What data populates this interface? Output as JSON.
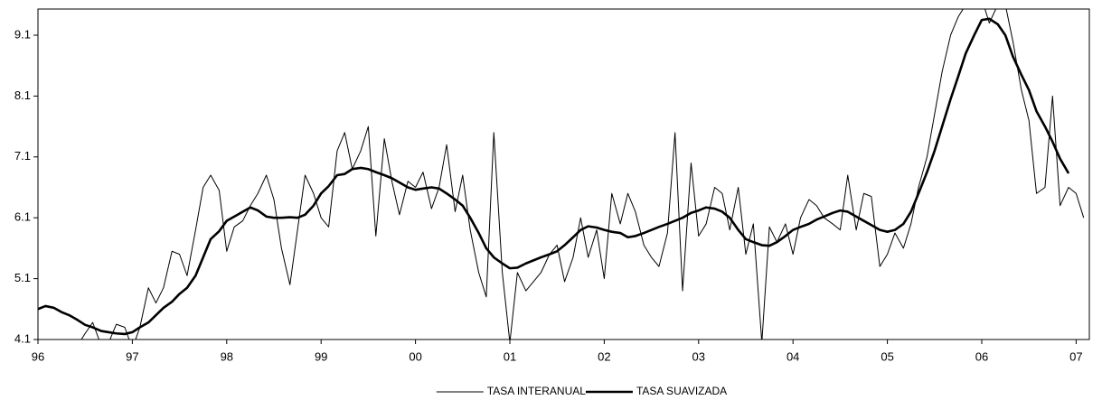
{
  "chart_data": {
    "type": "line",
    "x": [
      1996.0,
      1996.08,
      1996.17,
      1996.25,
      1996.33,
      1996.42,
      1996.5,
      1996.58,
      1996.67,
      1996.75,
      1996.83,
      1996.92,
      1997.0,
      1997.08,
      1997.17,
      1997.25,
      1997.33,
      1997.42,
      1997.5,
      1997.58,
      1997.67,
      1997.75,
      1997.83,
      1997.92,
      1998.0,
      1998.08,
      1998.17,
      1998.25,
      1998.33,
      1998.42,
      1998.5,
      1998.58,
      1998.67,
      1998.75,
      1998.83,
      1998.92,
      1999.0,
      1999.08,
      1999.17,
      1999.25,
      1999.33,
      1999.42,
      1999.5,
      1999.58,
      1999.67,
      1999.75,
      1999.83,
      1999.92,
      2000.0,
      2000.08,
      2000.17,
      2000.25,
      2000.33,
      2000.42,
      2000.5,
      2000.58,
      2000.67,
      2000.75,
      2000.83,
      2000.92,
      2001.0,
      2001.08,
      2001.17,
      2001.25,
      2001.33,
      2001.42,
      2001.5,
      2001.58,
      2001.67,
      2001.75,
      2001.83,
      2001.92,
      2002.0,
      2002.08,
      2002.17,
      2002.25,
      2002.33,
      2002.42,
      2002.5,
      2002.58,
      2002.67,
      2002.75,
      2002.83,
      2002.92,
      2003.0,
      2003.08,
      2003.17,
      2003.25,
      2003.33,
      2003.42,
      2003.5,
      2003.58,
      2003.67,
      2003.75,
      2003.83,
      2003.92,
      2004.0,
      2004.08,
      2004.17,
      2004.25,
      2004.33,
      2004.42,
      2004.5,
      2004.58,
      2004.67,
      2004.75,
      2004.83,
      2004.92,
      2005.0,
      2005.08,
      2005.17,
      2005.25,
      2005.33,
      2005.42,
      2005.5,
      2005.58,
      2005.67,
      2005.75,
      2005.83,
      2005.92,
      2006.0,
      2006.08,
      2006.17,
      2006.25,
      2006.33,
      2006.42,
      2006.5,
      2006.58,
      2006.67,
      2006.75,
      2006.83,
      2006.92,
      2007.0,
      2007.08
    ],
    "series": [
      {
        "name": "TASA INTERANUAL",
        "color": "#000000",
        "width": 1,
        "values": [
          4.0,
          4.0,
          4.0,
          4.0,
          4.0,
          4.0,
          4.2,
          4.38,
          4.0,
          4.05,
          4.35,
          4.3,
          3.95,
          4.3,
          4.95,
          4.7,
          4.95,
          5.55,
          5.5,
          5.15,
          5.9,
          6.6,
          6.8,
          6.55,
          5.55,
          5.95,
          6.05,
          6.3,
          6.5,
          6.8,
          6.4,
          5.6,
          5.0,
          5.9,
          6.8,
          6.5,
          6.1,
          5.95,
          7.2,
          7.5,
          6.9,
          7.2,
          7.6,
          5.8,
          7.4,
          6.7,
          6.15,
          6.7,
          6.6,
          6.85,
          6.25,
          6.6,
          7.3,
          6.2,
          6.8,
          5.9,
          5.2,
          4.8,
          7.5,
          5.2,
          4.05,
          5.2,
          4.9,
          5.05,
          5.2,
          5.5,
          5.65,
          5.05,
          5.45,
          6.1,
          5.45,
          5.9,
          5.1,
          6.5,
          6.0,
          6.5,
          6.2,
          5.65,
          5.45,
          5.3,
          5.85,
          7.5,
          4.9,
          7.0,
          5.8,
          6.0,
          6.6,
          6.5,
          5.9,
          6.6,
          5.5,
          6.0,
          4.05,
          5.95,
          5.7,
          6.0,
          5.5,
          6.1,
          6.4,
          6.3,
          6.1,
          6.0,
          5.9,
          6.8,
          5.9,
          6.5,
          6.45,
          5.3,
          5.5,
          5.85,
          5.6,
          6.0,
          6.6,
          7.1,
          7.8,
          8.5,
          9.1,
          9.4,
          9.6,
          9.75,
          9.7,
          9.3,
          9.6,
          9.6,
          9.0,
          8.2,
          7.7,
          6.5,
          6.6,
          8.1,
          6.3,
          6.6,
          6.5,
          6.1
        ]
      },
      {
        "name": "TASA SUAVIZADA",
        "color": "#000000",
        "width": 2.6,
        "values": [
          4.6,
          4.65,
          4.62,
          4.55,
          4.5,
          4.42,
          4.34,
          4.3,
          4.24,
          4.22,
          4.2,
          4.19,
          4.22,
          4.3,
          4.38,
          4.5,
          4.62,
          4.72,
          4.85,
          4.95,
          5.15,
          5.45,
          5.75,
          5.88,
          6.05,
          6.12,
          6.2,
          6.27,
          6.22,
          6.12,
          6.1,
          6.1,
          6.11,
          6.1,
          6.15,
          6.3,
          6.5,
          6.62,
          6.8,
          6.82,
          6.9,
          6.92,
          6.9,
          6.85,
          6.8,
          6.75,
          6.68,
          6.6,
          6.56,
          6.58,
          6.6,
          6.58,
          6.5,
          6.4,
          6.3,
          6.1,
          5.85,
          5.6,
          5.45,
          5.35,
          5.27,
          5.28,
          5.35,
          5.4,
          5.45,
          5.5,
          5.55,
          5.65,
          5.78,
          5.9,
          5.96,
          5.94,
          5.9,
          5.87,
          5.85,
          5.78,
          5.8,
          5.85,
          5.9,
          5.95,
          6.0,
          6.05,
          6.1,
          6.18,
          6.22,
          6.27,
          6.25,
          6.2,
          6.1,
          5.9,
          5.75,
          5.7,
          5.65,
          5.64,
          5.7,
          5.8,
          5.9,
          5.95,
          6.0,
          6.07,
          6.12,
          6.18,
          6.22,
          6.2,
          6.12,
          6.05,
          5.98,
          5.9,
          5.87,
          5.9,
          6.0,
          6.2,
          6.5,
          6.85,
          7.2,
          7.6,
          8.05,
          8.42,
          8.8,
          9.1,
          9.35,
          9.37,
          9.28,
          9.1,
          8.75,
          8.45,
          8.2,
          7.85,
          7.6,
          7.35,
          7.07,
          6.83,
          null,
          null
        ]
      }
    ],
    "xlim": [
      1996,
      2007.14
    ],
    "xticks": [
      {
        "value": 1996,
        "label": "96"
      },
      {
        "value": 1997,
        "label": "97"
      },
      {
        "value": 1998,
        "label": "98"
      },
      {
        "value": 1999,
        "label": "99"
      },
      {
        "value": 2000,
        "label": "00"
      },
      {
        "value": 2001,
        "label": "01"
      },
      {
        "value": 2002,
        "label": "02"
      },
      {
        "value": 2003,
        "label": "03"
      },
      {
        "value": 2004,
        "label": "04"
      },
      {
        "value": 2005,
        "label": "05"
      },
      {
        "value": 2006,
        "label": "06"
      },
      {
        "value": 2007,
        "label": "07"
      }
    ],
    "ylim": [
      4.1,
      9.53
    ],
    "yticks": [
      4.1,
      5.1,
      6.1,
      7.1,
      8.1,
      9.1
    ],
    "grid": false,
    "legend": "bottom"
  }
}
